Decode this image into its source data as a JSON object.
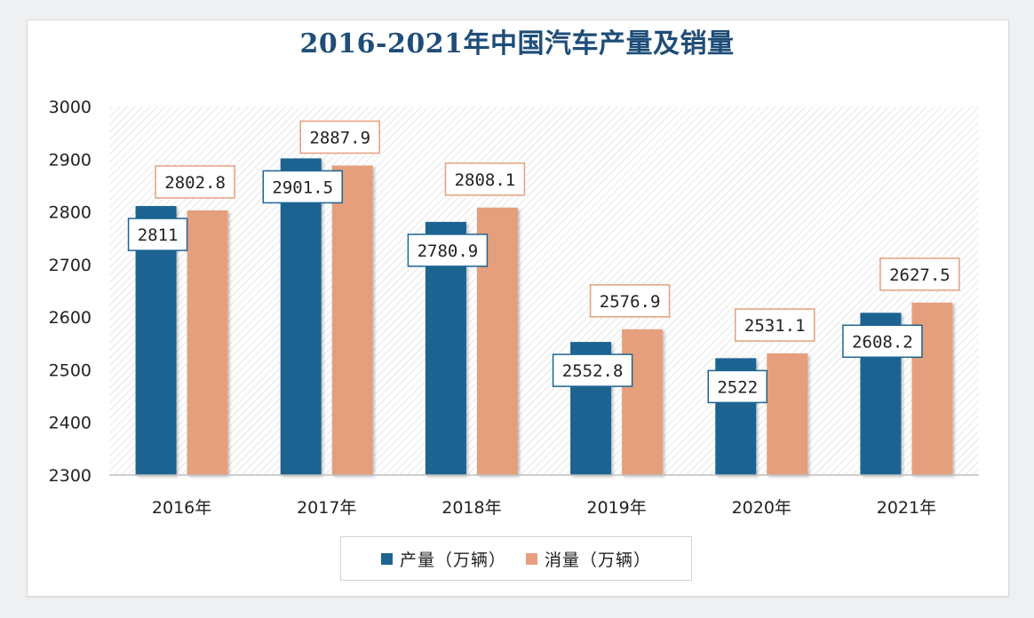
{
  "chart_data": {
    "type": "bar",
    "title": "2016-2021年中国汽车产量及销量",
    "categories": [
      "2016年",
      "2017年",
      "2018年",
      "2019年",
      "2020年",
      "2021年"
    ],
    "series": [
      {
        "name": "产量（万辆）",
        "color": "#1c6491",
        "values": [
          2811,
          2901.5,
          2780.9,
          2552.8,
          2522,
          2608.2
        ],
        "labels": [
          "2811",
          "2901.5",
          "2780.9",
          "2552.8",
          "2522",
          "2608.2"
        ]
      },
      {
        "name": "消量（万辆）",
        "color": "#e59f7d",
        "values": [
          2802.8,
          2887.9,
          2808.1,
          2576.9,
          2531.1,
          2627.5
        ],
        "labels": [
          "2802.8",
          "2887.9",
          "2808.1",
          "2576.9",
          "2531.1",
          "2627.5"
        ]
      }
    ],
    "yticks": [
      "2300",
      "2400",
      "2500",
      "2600",
      "2700",
      "2800",
      "2900",
      "3000"
    ],
    "ylim": [
      2300,
      3000
    ],
    "xlabel": "",
    "ylabel": "",
    "grid": false,
    "legend_position": "bottom",
    "background_pattern": "diagonal-hatch"
  },
  "colors": {
    "title": "#1f4d78",
    "series1_label_border": "#1c6491",
    "series2_label_border": "#e59f7d"
  }
}
